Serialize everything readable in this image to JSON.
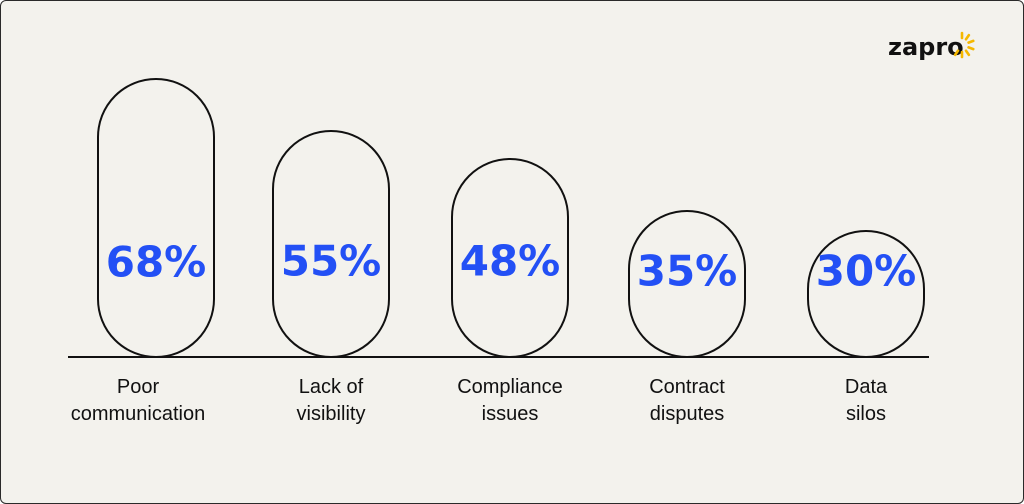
{
  "brand": {
    "logo_text": "zapro",
    "accent_color": "#f5b800"
  },
  "colors": {
    "value": "#2350f5",
    "outline": "#111111",
    "background": "#f3f2ed"
  },
  "chart_data": {
    "type": "bar",
    "title": "",
    "xlabel": "",
    "ylabel": "",
    "ylim": [
      0,
      80
    ],
    "grid": false,
    "categories": [
      "Poor communication",
      "Lack of visibility",
      "Compliance issues",
      "Contract disputes",
      "Data silos"
    ],
    "category_lines": [
      [
        "Poor",
        "communication"
      ],
      [
        "Lack of",
        "visibility"
      ],
      [
        "Compliance",
        "issues"
      ],
      [
        "Contract",
        "disputes"
      ],
      [
        "Data",
        "silos"
      ]
    ],
    "values": [
      68,
      55,
      48,
      35,
      30
    ],
    "value_labels": [
      "68%",
      "55%",
      "48%",
      "35%",
      "30%"
    ]
  }
}
